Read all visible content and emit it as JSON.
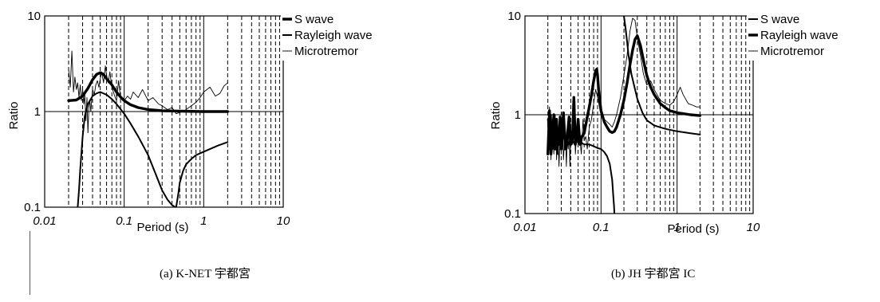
{
  "figure": {
    "caption_a": "(a)  K-NET 宇都宮",
    "caption_b": "(b)  JH 宇都宮 IC"
  },
  "colors": {
    "axis": "#000000",
    "grid": "#000000",
    "series_text": "#000000"
  },
  "chart_data": [
    {
      "id": "a",
      "type": "line",
      "xscale": "log",
      "yscale": "log",
      "xlim": [
        0.01,
        10
      ],
      "ylim": [
        0.1,
        10
      ],
      "xlabel": "Period (s)",
      "ylabel": "Ratio",
      "xticks": [
        "0.01",
        "0.1",
        "1",
        "10"
      ],
      "yticks": [
        "0.1",
        "1",
        "10"
      ],
      "grid": true,
      "legend": {
        "placement": "top-right",
        "items": [
          "S wave",
          "Rayleigh wave",
          "Microtremor"
        ]
      },
      "series": [
        {
          "name": "S wave",
          "line_weight": "heavy",
          "x": [
            0.02,
            0.025,
            0.03,
            0.035,
            0.04,
            0.045,
            0.05,
            0.055,
            0.06,
            0.07,
            0.08,
            0.09,
            0.1,
            0.12,
            0.15,
            0.2,
            0.3,
            0.5,
            1,
            2
          ],
          "y": [
            1.3,
            1.32,
            1.45,
            1.75,
            2.15,
            2.45,
            2.55,
            2.45,
            2.2,
            1.9,
            1.6,
            1.42,
            1.3,
            1.18,
            1.1,
            1.05,
            1.02,
            1.01,
            1.0,
            1.0
          ]
        },
        {
          "name": "Rayleigh wave",
          "line_weight": "medium",
          "x": [
            0.026,
            0.027,
            0.028,
            0.03,
            0.032,
            0.035,
            0.04,
            0.045,
            0.05,
            0.06,
            0.07,
            0.08,
            0.1,
            0.12,
            0.15,
            0.2,
            0.25,
            0.3,
            0.35,
            0.4,
            0.44,
            null,
            0.45,
            0.48,
            0.5,
            0.55,
            0.6,
            0.7,
            0.8,
            1,
            1.5,
            2
          ],
          "y": [
            0.1,
            0.15,
            0.25,
            0.55,
            0.9,
            1.2,
            1.45,
            1.55,
            1.6,
            1.5,
            1.35,
            1.2,
            0.95,
            0.75,
            0.55,
            0.35,
            0.22,
            0.15,
            0.12,
            0.105,
            0.1,
            null,
            0.1,
            0.14,
            0.18,
            0.24,
            0.28,
            0.32,
            0.35,
            0.38,
            0.44,
            0.48
          ]
        },
        {
          "name": "Microtremor",
          "line_weight": "light",
          "x": [
            0.02,
            0.021,
            0.022,
            0.023,
            0.024,
            0.025,
            0.026,
            0.027,
            0.028,
            0.029,
            0.03,
            0.031,
            0.032,
            0.033,
            0.034,
            0.035,
            0.036,
            0.037,
            0.038,
            0.04,
            0.042,
            0.044,
            0.046,
            0.048,
            0.05,
            0.052,
            0.055,
            0.058,
            0.06,
            0.063,
            0.066,
            0.07,
            0.075,
            0.08,
            0.085,
            0.09,
            0.1,
            0.11,
            0.12,
            0.13,
            0.15,
            0.17,
            0.2,
            0.23,
            0.27,
            0.3,
            0.35,
            0.4,
            0.45,
            0.5,
            0.55,
            0.6,
            0.7,
            0.8,
            0.9,
            1,
            1.2,
            1.4,
            1.6,
            1.8,
            2
          ],
          "y": [
            2.8,
            1.8,
            4.3,
            1.6,
            2.3,
            1.7,
            2.0,
            1.4,
            1.9,
            1.3,
            1.7,
            1.2,
            1.5,
            0.8,
            1.4,
            0.6,
            1.1,
            1.3,
            1.0,
            1.7,
            1.5,
            1.9,
            2.1,
            1.8,
            2.2,
            2.6,
            2.0,
            3.0,
            2.4,
            2.0,
            2.6,
            1.8,
            1.5,
            1.3,
            2.1,
            1.4,
            1.3,
            1.45,
            1.35,
            1.6,
            1.4,
            1.7,
            1.3,
            1.4,
            1.2,
            1.15,
            1.05,
            1.1,
            0.95,
            0.98,
            1.0,
            1.05,
            1.15,
            1.25,
            1.4,
            1.6,
            1.8,
            1.45,
            1.55,
            1.85,
            2.0
          ]
        }
      ]
    },
    {
      "id": "b",
      "type": "line",
      "xscale": "log",
      "yscale": "log",
      "xlim": [
        0.01,
        10
      ],
      "ylim": [
        0.1,
        10
      ],
      "xlabel": "Period (s)",
      "ylabel": "Ratio",
      "xticks": [
        "0.01",
        "0.1",
        "1",
        "10"
      ],
      "yticks": [
        "0.1",
        "1",
        "10"
      ],
      "grid": true,
      "legend": {
        "placement": "top-right",
        "items": [
          "S wave",
          "Rayleigh wave",
          "Microtremor"
        ]
      },
      "series": [
        {
          "name": "S wave",
          "line_weight": "medium",
          "x": [
            0.02,
            0.021,
            0.022,
            0.023,
            0.024,
            0.025,
            0.026,
            0.027,
            0.028,
            0.03,
            0.032,
            0.035,
            0.038,
            0.04,
            0.045,
            0.05,
            0.06,
            0.07,
            0.08,
            0.09,
            0.1,
            0.11,
            0.12,
            0.13,
            0.14,
            0.145,
            0.148,
            0.15,
            null,
            0.2,
            0.21,
            0.22,
            0.23,
            0.25,
            0.28,
            0.3,
            0.35,
            0.4,
            0.5,
            0.7,
            1,
            1.5,
            2
          ],
          "y": [
            0.9,
            0.5,
            1.0,
            0.45,
            0.8,
            0.5,
            0.7,
            0.4,
            0.65,
            0.5,
            0.6,
            0.55,
            0.5,
            0.6,
            0.5,
            0.55,
            0.5,
            0.5,
            0.48,
            0.46,
            0.45,
            0.42,
            0.38,
            0.32,
            0.22,
            0.15,
            0.12,
            0.1,
            null,
            10,
            7.5,
            5.5,
            4.0,
            2.6,
            1.8,
            1.45,
            1.05,
            0.88,
            0.78,
            0.72,
            0.68,
            0.65,
            0.63
          ]
        },
        {
          "name": "Rayleigh wave",
          "line_weight": "heavy",
          "x": [
            0.02,
            0.021,
            0.022,
            0.023,
            0.024,
            0.025,
            0.026,
            0.027,
            0.028,
            0.029,
            0.03,
            0.032,
            0.034,
            0.036,
            0.038,
            0.04,
            0.042,
            0.044,
            0.046,
            0.048,
            0.05,
            0.053,
            0.056,
            0.06,
            0.065,
            0.07,
            0.075,
            0.08,
            0.085,
            0.088,
            0.09,
            0.093,
            0.1,
            0.11,
            0.12,
            0.13,
            0.14,
            0.15,
            0.16,
            0.18,
            0.2,
            0.22,
            0.24,
            0.26,
            0.28,
            0.3,
            0.33,
            0.36,
            0.4,
            0.45,
            0.5,
            0.6,
            0.7,
            0.8,
            1,
            1.5,
            2
          ],
          "y": [
            0.4,
            1.1,
            0.4,
            0.6,
            1.0,
            0.45,
            0.9,
            0.5,
            0.5,
            0.95,
            0.45,
            1.05,
            0.45,
            0.6,
            0.95,
            0.5,
            0.55,
            1.5,
            0.5,
            0.6,
            0.9,
            0.5,
            0.6,
            0.65,
            0.9,
            1.2,
            1.6,
            2.2,
            2.8,
            2.9,
            2.5,
            1.8,
            1.1,
            0.85,
            0.75,
            0.68,
            0.66,
            0.68,
            0.75,
            1.0,
            1.4,
            2.1,
            3.2,
            4.5,
            5.8,
            6.3,
            5.0,
            3.6,
            2.5,
            1.9,
            1.6,
            1.3,
            1.18,
            1.1,
            1.05,
            1.0,
            0.98
          ]
        },
        {
          "name": "Microtremor",
          "line_weight": "light",
          "x": [
            0.02,
            0.021,
            0.022,
            0.023,
            0.024,
            0.025,
            0.026,
            0.027,
            0.028,
            0.029,
            0.03,
            0.031,
            0.032,
            0.033,
            0.034,
            0.035,
            0.036,
            0.037,
            0.038,
            0.039,
            0.04,
            0.042,
            0.044,
            0.046,
            0.048,
            0.05,
            0.052,
            0.055,
            0.058,
            0.06,
            0.063,
            0.066,
            0.07,
            0.075,
            0.08,
            0.085,
            0.09,
            0.1,
            0.11,
            0.12,
            0.13,
            0.14,
            0.15,
            0.16,
            0.18,
            0.2,
            0.22,
            0.24,
            0.26,
            0.28,
            0.3,
            0.33,
            0.36,
            0.4,
            0.45,
            0.5,
            0.6,
            0.7,
            0.8,
            0.9,
            1,
            1.1,
            1.2,
            1.4,
            1.6,
            1.8,
            2
          ],
          "y": [
            0.5,
            1.2,
            0.35,
            0.9,
            0.4,
            1.0,
            0.35,
            0.8,
            0.3,
            0.6,
            0.4,
            0.9,
            0.35,
            0.5,
            0.7,
            0.3,
            0.55,
            0.45,
            0.8,
            0.3,
            0.6,
            0.5,
            1.3,
            0.4,
            0.7,
            0.5,
            0.65,
            0.4,
            0.9,
            0.55,
            0.6,
            0.45,
            0.75,
            0.9,
            1.3,
            1.8,
            1.5,
            1.0,
            0.9,
            0.85,
            0.8,
            0.75,
            0.85,
            1.0,
            1.5,
            2.5,
            4.0,
            7.0,
            9.5,
            9.0,
            6.0,
            4.0,
            2.6,
            2.0,
            2.2,
            1.8,
            1.4,
            1.3,
            1.25,
            1.35,
            1.6,
            1.9,
            1.6,
            1.3,
            1.25,
            1.2,
            1.2
          ]
        }
      ]
    }
  ]
}
